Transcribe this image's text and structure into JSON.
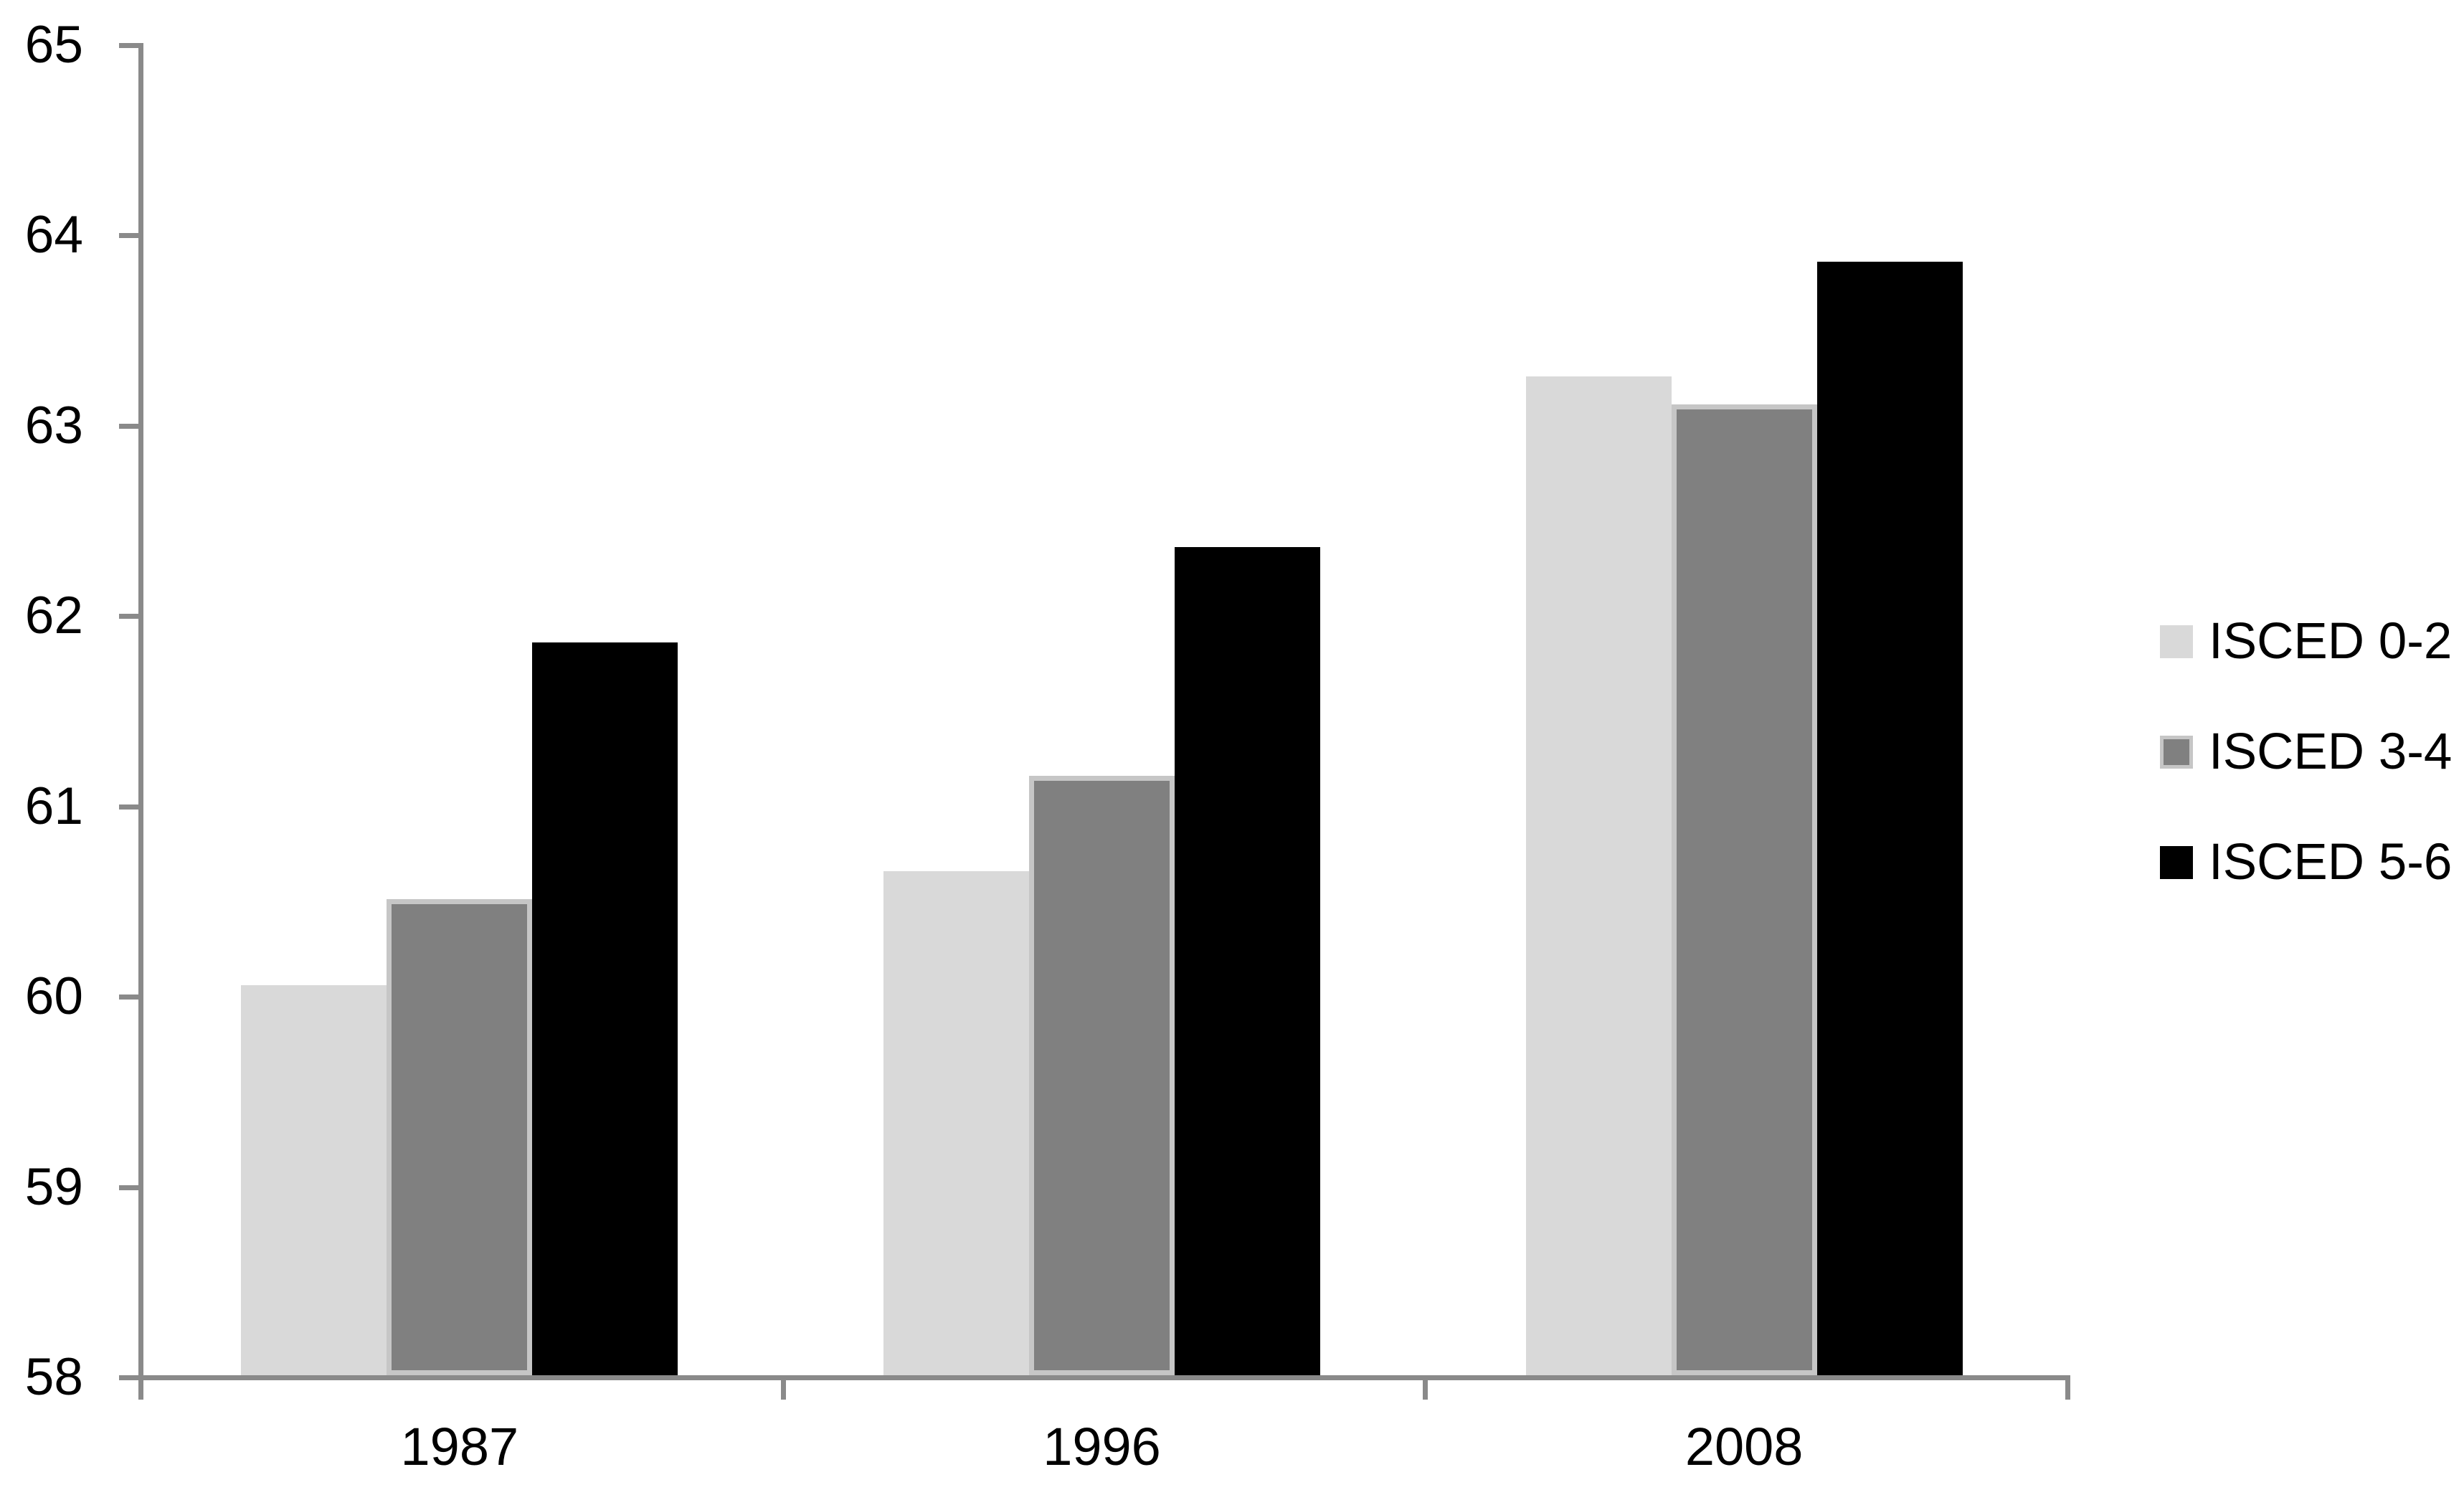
{
  "chart_data": {
    "type": "bar",
    "title": "",
    "xlabel": "",
    "ylabel": "",
    "categories": [
      "1987",
      "1996",
      "2008"
    ],
    "series": [
      {
        "name": "ISCED 0-2",
        "color": "#d9d9d9",
        "border_color": "#d9d9d9",
        "values": [
          60.05,
          60.65,
          63.25
        ]
      },
      {
        "name": "ISCED 3-4",
        "color": "#808080",
        "border_color": "#c6c6c6",
        "values": [
          60.5,
          61.15,
          63.1
        ]
      },
      {
        "name": "ISCED 5-6",
        "color": "#000000",
        "border_color": "#000000",
        "values": [
          61.85,
          62.35,
          63.85
        ]
      }
    ],
    "ylim": [
      58,
      65
    ],
    "ytick_step": 1,
    "ytick_labels": [
      "58",
      "59",
      "60",
      "61",
      "62",
      "63",
      "64",
      "65"
    ],
    "grid": false,
    "legend_position": "right",
    "legend_labels": [
      "ISCED 0-2",
      "ISCED 3-4",
      "ISCED 5-6"
    ],
    "axis_color": "#8a8a8a",
    "text_color": "#000000",
    "background_color": "#ffffff"
  }
}
